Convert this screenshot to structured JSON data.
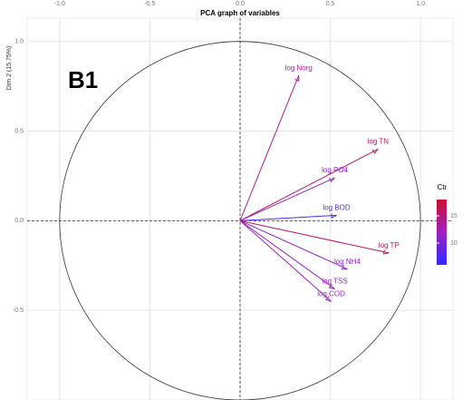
{
  "chart_data": {
    "type": "biplot",
    "title": "PCA graph of variables",
    "y_label": "Dim 2 (15.75%)",
    "annotation": "B1",
    "xlim": [
      -1.18,
      1.18
    ],
    "ylim": [
      -1.0,
      1.13
    ],
    "xticks": [
      {
        "value": -1,
        "label": "-1.0"
      },
      -0.5,
      {
        "value": 0,
        "label": "0.0"
      },
      0.5,
      {
        "value": 1,
        "label": "1.0"
      }
    ],
    "yticks": [
      {
        "value": 1,
        "label": "1.0"
      },
      0.5,
      {
        "value": 0,
        "label": "0.0"
      },
      -0.5
    ],
    "grid": true,
    "categories": [
      "log Norg",
      "log TN",
      "log PO4",
      "log BOD",
      "log TP",
      "log NH4",
      "log TSS",
      "log COD"
    ],
    "x": [
      0.325,
      0.765,
      0.525,
      0.535,
      0.825,
      0.595,
      0.525,
      0.505
    ],
    "values": [
      0.81,
      0.4,
      0.24,
      0.03,
      -0.18,
      -0.27,
      -0.38,
      -0.45
    ],
    "ctr": [
      14,
      16,
      11,
      8,
      16,
      11,
      12,
      12
    ],
    "legend_title": "Ctr",
    "legend_lim": [
      6,
      18
    ],
    "legend_ticks": [
      10,
      15
    ],
    "colorscale": [
      "#2b2bff",
      "#a020c0",
      "#c8102e"
    ]
  }
}
